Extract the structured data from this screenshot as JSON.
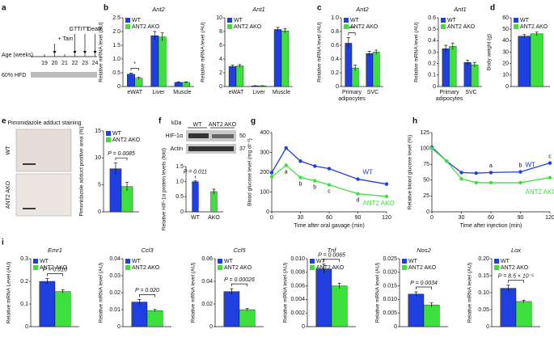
{
  "timeline": {
    "panel": "a",
    "axis_label": "Age (weeks)",
    "ticks": [
      "19",
      "20",
      "21",
      "22",
      "23",
      "24"
    ],
    "events": [
      "+ Tam",
      "GTT",
      "ITT",
      "Death"
    ],
    "diet": "60% HFD"
  },
  "staining": {
    "panel": "e",
    "title": "Pimonidazole adduct staining",
    "rows": [
      "WT",
      "ANT2 AKO"
    ]
  },
  "blot": {
    "panel": "f",
    "unit": "kDa",
    "lanes": [
      "WT",
      "ANT2 AKO"
    ],
    "rows": [
      "HIF-1α",
      "Actin"
    ],
    "markers": [
      "50",
      "37"
    ]
  },
  "chart_data": [
    {
      "panel": "b",
      "type": "bar",
      "title": "Ant2",
      "ylabel": "Relative mRNA level (AU)",
      "categories": [
        "eWAT",
        "Liver",
        "Muscle"
      ],
      "series": [
        {
          "name": "WT",
          "color": "#1f3fe0",
          "values": [
            0.45,
            1.85,
            0.15
          ],
          "errors": [
            0.04,
            0.15,
            0.02
          ]
        },
        {
          "name": "ANT2 AKO",
          "color": "#3ee03e",
          "values": [
            0.3,
            1.8,
            0.15
          ],
          "errors": [
            0.04,
            0.15,
            0.02
          ]
        }
      ],
      "ylim": [
        0,
        2.5
      ],
      "yticks": [
        0,
        0.5,
        {
          "value": 1.0,
          "label": "1.0"
        },
        1.5,
        {
          "value": 2.0,
          "label": "2.0"
        },
        2.5
      ],
      "annotations": [
        {
          "text": "*",
          "category": 0
        }
      ]
    },
    {
      "type": "bar",
      "title": "Ant1",
      "ylabel": "Relative mRNA level (AU)",
      "categories": [
        "eWAT",
        "Liver",
        "Muscle"
      ],
      "series": [
        {
          "name": "WT",
          "color": "#1f3fe0",
          "values": [
            2.9,
            0.1,
            8.3
          ],
          "errors": [
            0.2,
            0.02,
            0.3
          ]
        },
        {
          "name": "ANT2 AKO",
          "color": "#3ee03e",
          "values": [
            3.0,
            0.1,
            8.1
          ],
          "errors": [
            0.2,
            0.02,
            0.3
          ]
        }
      ],
      "ylim": [
        0,
        10
      ],
      "yticks": [
        0,
        2,
        4,
        6,
        8,
        10
      ]
    },
    {
      "panel": "c",
      "type": "bar",
      "title": "Ant2",
      "ylabel": "Relative mRNA level (AU)",
      "categories": [
        "Primary adipocytes",
        "SVC"
      ],
      "series": [
        {
          "name": "WT",
          "color": "#1f3fe0",
          "values": [
            0.63,
            0.48
          ],
          "errors": [
            0.08,
            0.03
          ]
        },
        {
          "name": "ANT2 AKO",
          "color": "#3ee03e",
          "values": [
            0.27,
            0.5
          ],
          "errors": [
            0.04,
            0.03
          ]
        }
      ],
      "ylim": [
        0,
        1
      ],
      "yticks": [
        0,
        0.2,
        0.4,
        0.6,
        0.8,
        {
          "value": 1,
          "label": "1.0"
        }
      ],
      "annotations": [
        {
          "text": "***",
          "category": 0
        }
      ]
    },
    {
      "type": "bar",
      "title": "Ant1",
      "ylabel": "Relative mRNA level (AU)",
      "categories": [
        "Primary adipocytes",
        "SVC"
      ],
      "series": [
        {
          "name": "WT",
          "color": "#1f3fe0",
          "values": [
            0.33,
            0.21
          ],
          "errors": [
            0.03,
            0.02
          ]
        },
        {
          "name": "ANT2 AKO",
          "color": "#3ee03e",
          "values": [
            0.35,
            0.19
          ],
          "errors": [
            0.03,
            0.02
          ]
        }
      ],
      "ylim": [
        0,
        0.6
      ],
      "yticks": [
        0,
        0.1,
        0.2,
        0.3,
        0.4,
        0.5,
        0.6
      ]
    },
    {
      "panel": "d",
      "type": "bar",
      "ylabel": "Body weight (g)",
      "series": [
        {
          "name": "WT",
          "color": "#1f3fe0",
          "values": [
            44
          ],
          "errors": [
            1.5
          ]
        },
        {
          "name": "ANT2 AKO",
          "color": "#3ee03e",
          "values": [
            46
          ],
          "errors": [
            1.5
          ]
        }
      ],
      "ylim": [
        0,
        60
      ],
      "yticks": [
        0,
        10,
        20,
        30,
        40,
        50,
        60
      ]
    },
    {
      "type": "bar",
      "ylabel": "Pimonidazole adduct positive area (%)",
      "series": [
        {
          "name": "WT",
          "color": "#1f3fe0",
          "values": [
            8
          ],
          "errors": [
            1.1
          ]
        },
        {
          "name": "ANT2 AKO",
          "color": "#3ee03e",
          "values": [
            4.7
          ],
          "errors": [
            0.8
          ]
        }
      ],
      "ylim": [
        0,
        15
      ],
      "yticks": [
        0,
        5,
        10,
        15
      ],
      "annotations": [
        {
          "text": "P = 0.0085"
        }
      ]
    },
    {
      "type": "bar",
      "ylabel": "Relative HIF-1α protein levels (fold)",
      "categories": [
        "WT",
        "AKO"
      ],
      "values": [
        1.0,
        0.67
      ],
      "errors": [
        0.03,
        0.08
      ],
      "colors": [
        "#1f3fe0",
        "#3ee03e"
      ],
      "ylim": [
        0,
        1.5
      ],
      "yticks": [
        0,
        0.5,
        {
          "value": 1.0,
          "label": "1.0"
        },
        1.5
      ],
      "annotations": [
        {
          "text": "P = 0.011"
        }
      ]
    },
    {
      "panel": "g",
      "type": "line",
      "ylabel": "Blood glucose level (mg dl⁻¹)",
      "xlabel": "Time after oral gavage (min)",
      "x": [
        0,
        15,
        30,
        45,
        60,
        90,
        120
      ],
      "series": [
        {
          "name": "WT",
          "color": "#1f3fe0",
          "values": [
            198,
            322,
            256,
            231,
            218,
            165,
            140
          ]
        },
        {
          "name": "ANT2 AKO",
          "color": "#3ee03e",
          "values": [
            177,
            235,
            173,
            157,
            136,
            91,
            78
          ]
        }
      ],
      "xlim": [
        0,
        120
      ],
      "xticks": [
        0,
        30,
        60,
        90,
        120
      ],
      "ylim": [
        0,
        400
      ],
      "yticks": [
        0,
        100,
        200,
        300,
        400
      ],
      "annotation_side": "below",
      "annotations": [
        {
          "text": "a",
          "x": 15
        },
        {
          "text": "b",
          "x": 30
        },
        {
          "text": "b",
          "x": 45
        },
        {
          "text": "c",
          "x": 60
        },
        {
          "text": "d",
          "x": 90
        }
      ]
    },
    {
      "panel": "h",
      "type": "line",
      "ylabel": "Relative blood glucose level (%)",
      "xlabel": "Time after injection (min)",
      "x": [
        0,
        15,
        30,
        45,
        60,
        90,
        120
      ],
      "series": [
        {
          "name": "WT",
          "color": "#1f3fe0",
          "values": [
            102,
            80,
            62,
            61,
            62,
            63,
            77
          ]
        },
        {
          "name": "ANT2 AKO",
          "color": "#3ee03e",
          "values": [
            100,
            80,
            52,
            46,
            46,
            46,
            54
          ]
        }
      ],
      "xlim": [
        0,
        120
      ],
      "xticks": [
        0,
        30,
        60,
        90,
        120
      ],
      "ylim": [
        0,
        125
      ],
      "yticks": [
        0,
        25,
        50,
        75,
        100,
        125
      ],
      "annotation_side": "above",
      "annotations": [
        {
          "text": "a",
          "x": 60
        },
        {
          "text": "b",
          "x": 90
        },
        {
          "text": "c",
          "x": 120
        }
      ]
    },
    {
      "panel": "i",
      "type": "bar",
      "title": "Emr1",
      "ylabel": "Relative mRNA Level (AU)",
      "series": [
        {
          "name": "WT",
          "color": "#1f3fe0",
          "values": [
            0.2
          ],
          "errors": [
            0.012
          ]
        },
        {
          "name": "ANT2 AKO",
          "color": "#3ee03e",
          "values": [
            0.155
          ],
          "errors": [
            0.007
          ]
        }
      ],
      "ylim": [
        0,
        0.3
      ],
      "yticks": [
        0,
        0.1,
        0.2,
        0.3
      ],
      "annotations": [
        {
          "text": "P = 0.010"
        }
      ]
    },
    {
      "type": "bar",
      "title": "Ccl3",
      "ylabel": "Relative mRNA level (AU)",
      "series": [
        {
          "name": "WT",
          "color": "#1f3fe0",
          "values": [
            0.0145
          ],
          "errors": [
            0.0015
          ]
        },
        {
          "name": "ANT2 AKO",
          "color": "#3ee03e",
          "values": [
            0.0095
          ],
          "errors": [
            0.0007
          ]
        }
      ],
      "ylim": [
        0,
        0.04
      ],
      "yticks": [
        0,
        0.01,
        0.02,
        0.03,
        0.04
      ],
      "annotations": [
        {
          "text": "P = 0.020"
        }
      ]
    },
    {
      "type": "bar",
      "title": "Ccl5",
      "ylabel": "Relative mRNA level (AU)",
      "series": [
        {
          "name": "WT",
          "color": "#1f3fe0",
          "values": [
            0.031
          ],
          "errors": [
            0.0025
          ]
        },
        {
          "name": "ANT2 AKO",
          "color": "#3ee03e",
          "values": [
            0.015
          ],
          "errors": [
            0.001
          ]
        }
      ],
      "ylim": [
        0,
        0.06
      ],
      "yticks": [
        0,
        0.02,
        0.04,
        0.06
      ],
      "annotations": [
        {
          "text": "P = 0.00026"
        }
      ]
    },
    {
      "type": "bar",
      "title": "Tnf",
      "ylabel": "Relative mRNA level (AU)",
      "series": [
        {
          "name": "WT",
          "color": "#1f3fe0",
          "values": [
            0.0085
          ],
          "errors": [
            0.0007
          ]
        },
        {
          "name": "ANT2 AKO",
          "color": "#3ee03e",
          "values": [
            0.006
          ],
          "errors": [
            0.0004
          ]
        }
      ],
      "ylim": [
        0,
        0.01
      ],
      "yticks": [
        0,
        0.002,
        0.004,
        0.006,
        0.008,
        {
          "value": 0.01,
          "label": "0.010"
        }
      ],
      "annotations": [
        {
          "text": "P = 0.0065"
        }
      ]
    },
    {
      "type": "bar",
      "title": "Nos2",
      "ylabel": "Relative mRNA level (AU)",
      "series": [
        {
          "name": "WT",
          "color": "#1f3fe0",
          "values": [
            0.012
          ],
          "errors": [
            0.0008
          ]
        },
        {
          "name": "ANT2 AKO",
          "color": "#3ee03e",
          "values": [
            0.008
          ],
          "errors": [
            0.0008
          ]
        }
      ],
      "ylim": [
        0,
        0.025
      ],
      "yticks": [
        0,
        0.005,
        {
          "value": 0.01,
          "label": "0.010"
        },
        0.015,
        {
          "value": 0.02,
          "label": "0.020"
        },
        0.025
      ],
      "annotations": [
        {
          "text": "P = 0.0034"
        }
      ]
    },
    {
      "type": "bar",
      "title": "Lox",
      "ylabel": "Relative mRNA level (AU)",
      "series": [
        {
          "name": "WT",
          "color": "#1f3fe0",
          "values": [
            0.113
          ],
          "errors": [
            0.009
          ]
        },
        {
          "name": "ANT2 AKO",
          "color": "#3ee03e",
          "values": [
            0.074
          ],
          "errors": [
            0.004
          ]
        }
      ],
      "ylim": [
        0,
        0.2
      ],
      "yticks": [
        0,
        0.05,
        {
          "value": 0.1,
          "label": "0.10"
        },
        0.15,
        {
          "value": 0.2,
          "label": "0.20"
        }
      ],
      "annotations": [
        {
          "text": "P = 8.5 × 10⁻⁵"
        }
      ]
    }
  ]
}
